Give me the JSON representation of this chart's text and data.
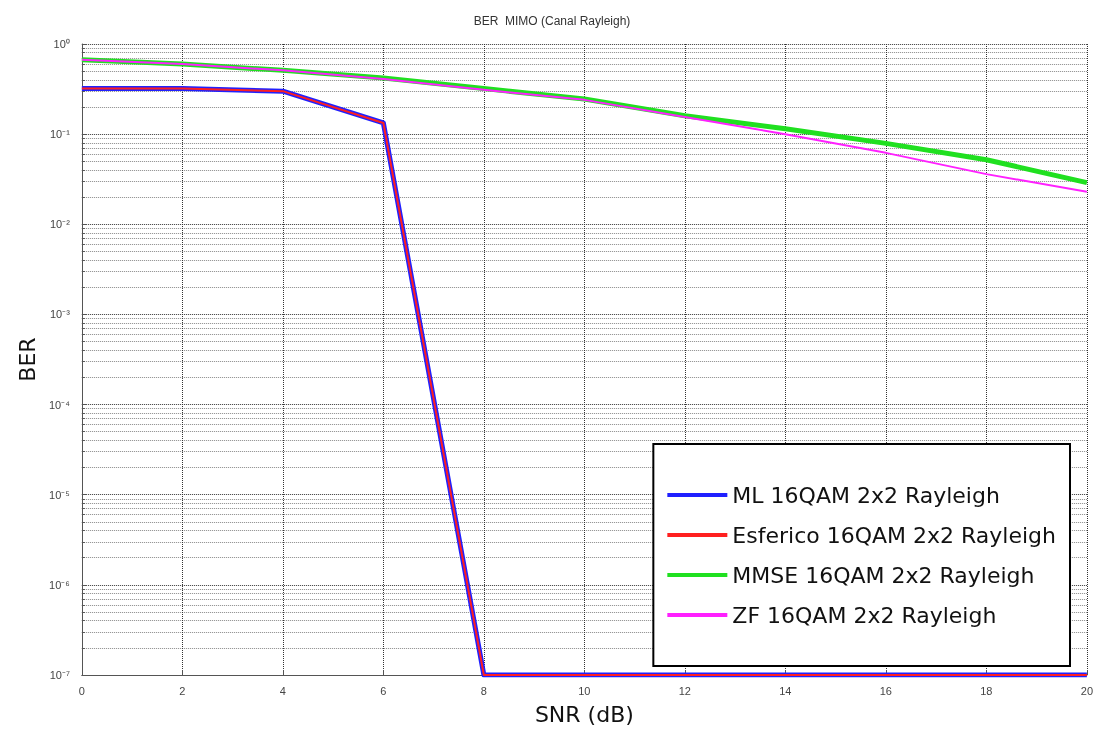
{
  "chart_data": {
    "type": "line",
    "title": "BER  MIMO (Canal Rayleigh)",
    "xlabel": "SNR (dB)",
    "ylabel": "BER",
    "x": [
      0,
      2,
      4,
      6,
      8,
      10,
      12,
      14,
      16,
      18,
      20
    ],
    "series": [
      {
        "name": "ML 16QAM 2x2 Rayleigh",
        "color": "#2020ff",
        "values": [
          0.32,
          0.32,
          0.3,
          0.133,
          1e-07,
          1e-07,
          1e-07,
          1e-07,
          1e-07,
          1e-07,
          1e-07
        ]
      },
      {
        "name": "Esferico 16QAM 2x2 Rayleigh",
        "color": "#ff2020",
        "values": [
          0.32,
          0.32,
          0.3,
          0.133,
          1e-07,
          1e-07,
          1e-07,
          1e-07,
          1e-07,
          1e-07,
          1e-07
        ]
      },
      {
        "name": "MMSE 16QAM 2x2 Rayleigh",
        "color": "#20e020",
        "values": [
          0.67,
          0.6,
          0.51,
          0.42,
          0.32,
          0.245,
          0.16,
          0.115,
          0.079,
          0.052,
          0.029
        ]
      },
      {
        "name": "ZF 16QAM 2x2 Rayleigh",
        "color": "#ff20ff",
        "values": [
          0.67,
          0.6,
          0.51,
          0.41,
          0.31,
          0.24,
          0.155,
          0.1,
          0.062,
          0.036,
          0.023
        ]
      }
    ],
    "log": "y",
    "xlim": [
      0,
      20
    ],
    "xticks": [
      0,
      2,
      4,
      6,
      8,
      10,
      12,
      14,
      16,
      18,
      20
    ],
    "ylim": [
      1e-07,
      1
    ],
    "yticks": [
      {
        "value": 1e-07,
        "label": "10⁻⁷"
      },
      {
        "value": 1e-06,
        "label": "10⁻⁶"
      },
      {
        "value": 1e-05,
        "label": "10⁻⁵"
      },
      {
        "value": 0.0001,
        "label": "10⁻⁴"
      },
      {
        "value": 0.001,
        "label": "10⁻³"
      },
      {
        "value": 0.01,
        "label": "10⁻²"
      },
      {
        "value": 0.1,
        "label": "10⁻¹"
      },
      {
        "value": 1,
        "label": "10⁰"
      }
    ],
    "grid": true,
    "legend": "bottom right",
    "marker": "none",
    "line_style": "solid"
  }
}
